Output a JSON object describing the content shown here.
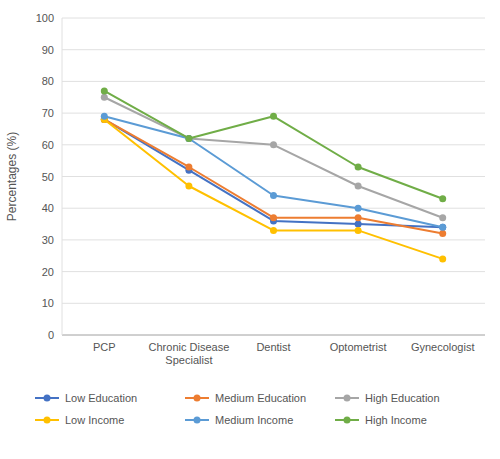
{
  "chart_data": {
    "type": "line",
    "categories": [
      "PCP",
      "Chronic Disease\nSpecialist",
      "Dentist",
      "Optometrist",
      "Gynecologist"
    ],
    "series": [
      {
        "name": "Low Education",
        "color": "#4472c4",
        "values": [
          68,
          52,
          36,
          35,
          34
        ]
      },
      {
        "name": "Medium Education",
        "color": "#ed7d31",
        "values": [
          68,
          53,
          37,
          37,
          32
        ]
      },
      {
        "name": "High Education",
        "color": "#a6a6a6",
        "values": [
          75,
          62,
          60,
          47,
          37
        ]
      },
      {
        "name": "Low Income",
        "color": "#ffc000",
        "values": [
          68,
          47,
          33,
          33,
          24
        ]
      },
      {
        "name": "Medium Income",
        "color": "#5b9bd5",
        "values": [
          69,
          62,
          44,
          40,
          34
        ]
      },
      {
        "name": "High Income",
        "color": "#70ad47",
        "values": [
          77,
          62,
          69,
          53,
          43
        ]
      }
    ],
    "ylabel": "Percentages (%)",
    "ylim": [
      0,
      100
    ],
    "yticks": [
      0,
      10,
      20,
      30,
      40,
      50,
      60,
      70,
      80,
      90,
      100
    ],
    "grid": true,
    "legend": "bottom",
    "marker": "circle"
  }
}
